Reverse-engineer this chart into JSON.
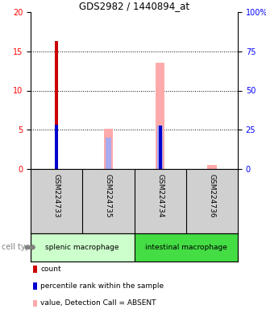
{
  "title": "GDS2982 / 1440894_at",
  "samples": [
    "GSM224733",
    "GSM224735",
    "GSM224734",
    "GSM224736"
  ],
  "cell_types": [
    {
      "label": "splenic macrophage",
      "span": [
        0,
        2
      ],
      "color": "#ccffcc"
    },
    {
      "label": "intestinal macrophage",
      "span": [
        2,
        4
      ],
      "color": "#44dd44"
    }
  ],
  "ylim_left": [
    0,
    20
  ],
  "ylim_right": [
    0,
    100
  ],
  "yticks_left": [
    0,
    5,
    10,
    15,
    20
  ],
  "yticks_right": [
    0,
    25,
    50,
    75,
    100
  ],
  "ytick_labels_right": [
    "0",
    "25",
    "50",
    "75",
    "100%"
  ],
  "count_bars": {
    "GSM224733": 16.3,
    "GSM224735": null,
    "GSM224734": null,
    "GSM224736": null
  },
  "percentile_bars": {
    "GSM224733": 5.6,
    "GSM224735": null,
    "GSM224734": 5.5,
    "GSM224736": null
  },
  "absent_value_bars": {
    "GSM224733": null,
    "GSM224735": 5.1,
    "GSM224734": 13.5,
    "GSM224736": 0.55
  },
  "absent_rank_bars": {
    "GSM224733": null,
    "GSM224735": 4.0,
    "GSM224734": 5.5,
    "GSM224736": null
  },
  "color_count": "#cc0000",
  "color_percentile": "#0000cc",
  "color_absent_value": "#ffaaaa",
  "color_absent_rank": "#aaaaee",
  "legend_items": [
    {
      "color": "#cc0000",
      "label": "count"
    },
    {
      "color": "#0000cc",
      "label": "percentile rank within the sample"
    },
    {
      "color": "#ffaaaa",
      "label": "value, Detection Call = ABSENT"
    },
    {
      "color": "#aaaaee",
      "label": "rank, Detection Call = ABSENT"
    }
  ],
  "absent_value_bar_width": 0.18,
  "absent_rank_bar_width": 0.12,
  "count_bar_width": 0.06,
  "percentile_bar_width": 0.06
}
